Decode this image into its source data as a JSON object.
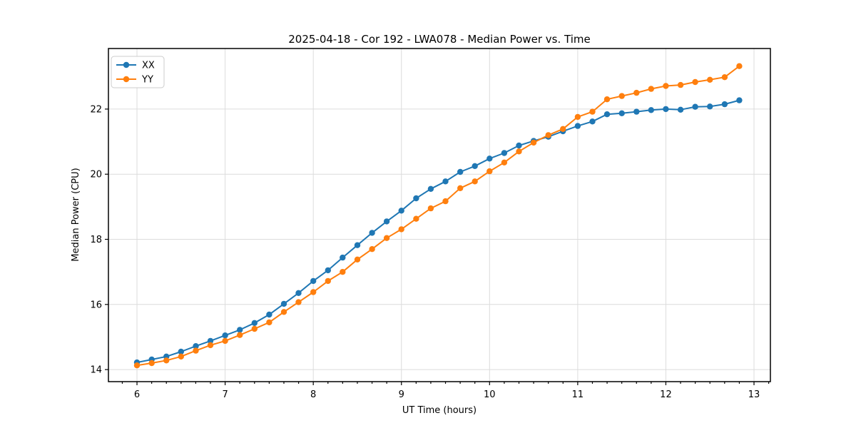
{
  "title": "2025-04-18 - Cor 192 - LWA078 - Median Power vs. Time",
  "chart_data": {
    "type": "line",
    "title": "2025-04-18 - Cor 192 - LWA078 - Median Power vs. Time",
    "xlabel": "UT Time (hours)",
    "ylabel": "Median Power (CPU)",
    "xlim": [
      5.676,
      13.186
    ],
    "ylim": [
      13.63,
      23.86
    ],
    "xticks": [
      6,
      7,
      8,
      9,
      10,
      11,
      12,
      13
    ],
    "yticks": [
      14,
      16,
      18,
      20,
      22
    ],
    "minor_xtick_step_hours": 0.1667,
    "grid": true,
    "legend_position": "upper-left",
    "x": [
      6.0,
      6.167,
      6.333,
      6.5,
      6.667,
      6.833,
      7.0,
      7.167,
      7.333,
      7.5,
      7.667,
      7.833,
      8.0,
      8.167,
      8.333,
      8.5,
      8.667,
      8.833,
      9.0,
      9.167,
      9.333,
      9.5,
      9.667,
      9.833,
      10.0,
      10.167,
      10.333,
      10.5,
      10.667,
      10.833,
      11.0,
      11.167,
      11.333,
      11.5,
      11.667,
      11.833,
      12.0,
      12.167,
      12.333,
      12.5,
      12.667,
      12.833
    ],
    "series": [
      {
        "name": "XX",
        "color": "#1f77b4",
        "values": [
          14.22,
          14.31,
          14.4,
          14.55,
          14.72,
          14.88,
          15.05,
          15.22,
          15.43,
          15.69,
          16.02,
          16.35,
          16.72,
          17.05,
          17.44,
          17.82,
          18.2,
          18.55,
          18.88,
          19.26,
          19.55,
          19.78,
          20.07,
          20.25,
          20.48,
          20.65,
          20.88,
          21.02,
          21.15,
          21.32,
          21.48,
          21.62,
          21.84,
          21.87,
          21.92,
          21.97,
          22.0,
          21.98,
          22.07,
          22.08,
          22.15,
          22.27
        ]
      },
      {
        "name": "YY",
        "color": "#ff7f0e",
        "values": [
          14.13,
          14.2,
          14.28,
          14.4,
          14.58,
          14.75,
          14.88,
          15.06,
          15.25,
          15.45,
          15.77,
          16.07,
          16.38,
          16.72,
          17.0,
          17.38,
          17.7,
          18.04,
          18.31,
          18.63,
          18.95,
          19.17,
          19.57,
          19.78,
          20.09,
          20.36,
          20.7,
          20.97,
          21.2,
          21.39,
          21.76,
          21.92,
          22.3,
          22.4,
          22.5,
          22.62,
          22.71,
          22.74,
          22.83,
          22.9,
          22.98,
          23.32
        ]
      }
    ]
  },
  "colors": {
    "background": "#ffffff",
    "grid": "#dcdcdc",
    "axis": "#000000",
    "series_xx": "#1f77b4",
    "series_yy": "#ff7f0e"
  }
}
